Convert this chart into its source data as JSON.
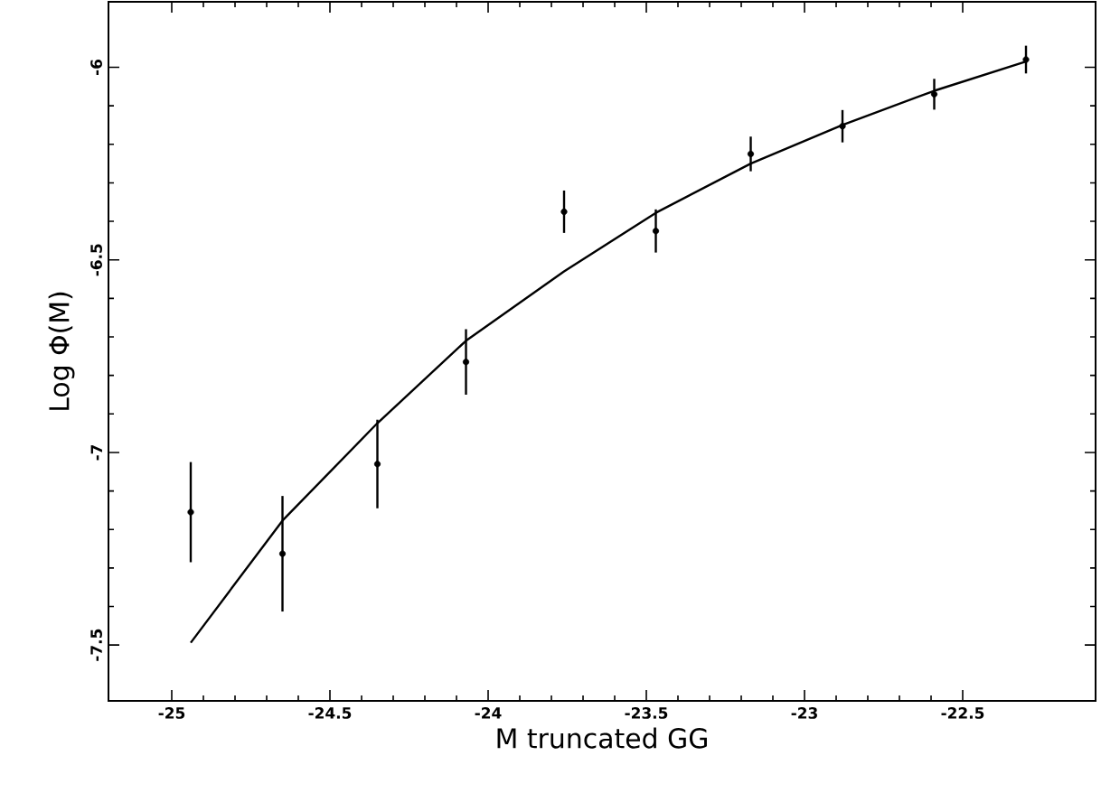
{
  "chart_data": {
    "type": "scatter",
    "xlabel": "M truncated GG",
    "ylabel": "Log Φ(M)",
    "xlim": [
      -25.2,
      -22.08
    ],
    "ylim": [
      -7.645,
      -5.83
    ],
    "xticks": [
      -25,
      -24.5,
      -24,
      -23.5,
      -23,
      -22.5
    ],
    "yticks": [
      -7.5,
      -7,
      -6.5,
      -6
    ],
    "grid": false,
    "series": [
      {
        "color": "#000000",
        "x": [
          -24.94,
          -24.65,
          -24.35,
          -24.07,
          -23.76,
          -23.47,
          -23.17,
          -22.88,
          -22.59,
          -22.3
        ],
        "values": [
          -7.155,
          -7.263,
          -7.03,
          -6.765,
          -6.375,
          -6.425,
          -6.225,
          -6.153,
          -6.07,
          -5.98
        ],
        "errors": [
          0.13,
          0.15,
          0.115,
          0.085,
          0.055,
          0.056,
          0.045,
          0.042,
          0.04,
          0.036
        ]
      },
      {
        "type": "line",
        "color": "#000000",
        "line_style": "solid",
        "marker": "none",
        "x": [
          -24.94,
          -24.65,
          -24.35,
          -24.07,
          -23.76,
          -23.47,
          -23.17,
          -22.88,
          -22.59,
          -22.3
        ],
        "values": [
          -7.494,
          -7.177,
          -6.924,
          -6.71,
          -6.53,
          -6.378,
          -6.25,
          -6.15,
          -6.061,
          -5.985
        ]
      }
    ]
  }
}
